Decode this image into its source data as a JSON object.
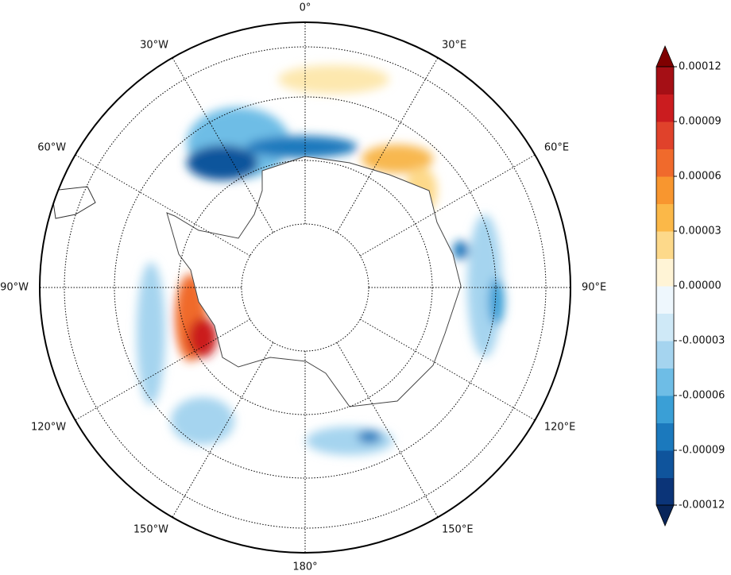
{
  "map": {
    "longitude_labels": [
      {
        "value": 0,
        "label": "0°"
      },
      {
        "value": 30,
        "label": "30°E"
      },
      {
        "value": 60,
        "label": "60°E"
      },
      {
        "value": 90,
        "label": "90°E"
      },
      {
        "value": 120,
        "label": "120°E"
      },
      {
        "value": 150,
        "label": "150°E"
      },
      {
        "value": 180,
        "label": "180°"
      },
      {
        "value": 210,
        "label": "150°W"
      },
      {
        "value": 240,
        "label": "120°W"
      },
      {
        "value": 270,
        "label": "90°W"
      },
      {
        "value": 300,
        "label": "60°W"
      },
      {
        "value": 330,
        "label": "30°W"
      }
    ]
  },
  "colorbar": {
    "clim": [
      -0.00012,
      0.00012
    ],
    "ticks": [
      {
        "value": 0.00012,
        "label": "0.00012"
      },
      {
        "value": 9e-05,
        "label": "0.00009"
      },
      {
        "value": 6e-05,
        "label": "0.00006"
      },
      {
        "value": 3e-05,
        "label": "0.00003"
      },
      {
        "value": 0,
        "label": "0.00000"
      },
      {
        "value": -3e-05,
        "label": "-0.00003"
      },
      {
        "value": -6e-05,
        "label": "-0.00006"
      },
      {
        "value": -9e-05,
        "label": "-0.00009"
      },
      {
        "value": -0.00012,
        "label": "-0.00012"
      }
    ],
    "colors": [
      "#0b3478",
      "#0f549c",
      "#1b79bd",
      "#3a9fd6",
      "#6ebde6",
      "#a5d4ef",
      "#cfe9f7",
      "#eef7fd",
      "#fff4d6",
      "#fdd98a",
      "#fbb848",
      "#f8962f",
      "#f06a2c",
      "#e0422b",
      "#cb1c1f",
      "#a50f15"
    ],
    "under_color": "#08255a",
    "over_color": "#7f0000"
  }
}
